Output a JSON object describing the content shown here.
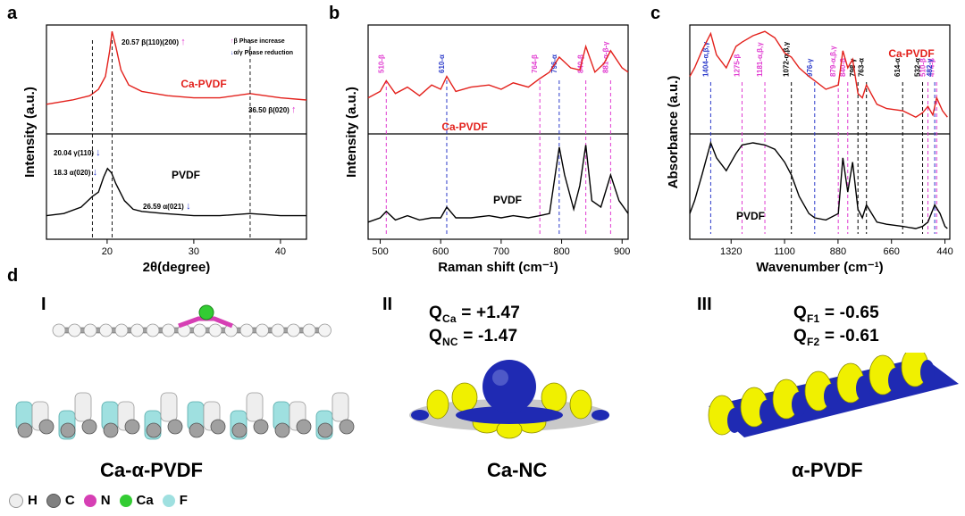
{
  "figure": {
    "labels": [
      "a",
      "b",
      "c",
      "d"
    ],
    "panel_d": {
      "roman": [
        "I",
        "II",
        "III"
      ],
      "q_ca": "Q",
      "q_ca_sub": "Ca",
      "q_ca_val": " = +1.47",
      "q_nc": "Q",
      "q_nc_sub": "NC",
      "q_nc_val": " = -1.47",
      "q_f1": "Q",
      "q_f1_sub": "F1",
      "q_f1_val": " = -0.65",
      "q_f2": "Q",
      "q_f2_sub": "F2",
      "q_f2_val": " = -0.61",
      "captions": [
        "Ca-α-PVDF",
        "Ca-NC",
        "α-PVDF"
      ],
      "legend": [
        {
          "symbol": "H",
          "color": "#eeeeee"
        },
        {
          "symbol": "C",
          "color": "#808080"
        },
        {
          "symbol": "N",
          "color": "#d63fb4"
        },
        {
          "symbol": "Ca",
          "color": "#33cc33"
        },
        {
          "symbol": "F",
          "color": "#9fe0e0"
        }
      ]
    }
  },
  "colors": {
    "ca_pvdf": "#e3211c",
    "pvdf": "#000000",
    "beta": "#e03ad0",
    "alpha": "#2a39c9",
    "mixed": "#000000"
  },
  "chart_data": [
    {
      "type": "line",
      "panel": "a",
      "xlabel": "2θ(degree)",
      "ylabel": "Intensity (a.u.)",
      "xlim": [
        13,
        43
      ],
      "xticks": [
        20,
        30,
        40
      ],
      "series": [
        {
          "name": "Ca-PVDF",
          "x": [
            13,
            16,
            18,
            19,
            19.8,
            20.3,
            20.57,
            21,
            21.6,
            22.5,
            24,
            27,
            30,
            33,
            36.5,
            40,
            43
          ],
          "y": [
            0.63,
            0.65,
            0.67,
            0.7,
            0.76,
            0.88,
            0.97,
            0.9,
            0.79,
            0.72,
            0.69,
            0.67,
            0.66,
            0.66,
            0.68,
            0.66,
            0.65
          ]
        },
        {
          "name": "PVDF",
          "x": [
            13,
            15,
            17,
            18.3,
            19,
            19.6,
            20.04,
            20.5,
            21,
            22,
            23,
            24,
            26.59,
            30,
            33,
            36.5,
            40,
            43
          ],
          "y": [
            0.11,
            0.12,
            0.15,
            0.2,
            0.22,
            0.29,
            0.33,
            0.31,
            0.26,
            0.18,
            0.14,
            0.13,
            0.12,
            0.11,
            0.11,
            0.12,
            0.11,
            0.11
          ]
        }
      ],
      "annotations": [
        {
          "text": "20.57 β(110)(200)",
          "arrow": "↑"
        },
        {
          "text": "36.50 β(020)",
          "arrow": "↑"
        },
        {
          "text": "20.04 γ(110)",
          "arrow": "↓"
        },
        {
          "text": "18.3 α(020)",
          "arrow": "↓"
        },
        {
          "text": "26.59 α(021)",
          "arrow": "↓"
        },
        {
          "text": "β Phase increase",
          "arrow": "↑"
        },
        {
          "text": "α/γ Phase reduction",
          "arrow": "↓"
        }
      ],
      "series_labels": [
        "Ca-PVDF",
        "PVDF"
      ]
    },
    {
      "type": "line",
      "panel": "b",
      "xlabel": "Raman shift (cm⁻¹)",
      "ylabel": "Intensity (a.u.)",
      "xlim": [
        480,
        910
      ],
      "xticks": [
        500,
        600,
        700,
        800,
        900
      ],
      "series": [
        {
          "name": "Ca-PVDF",
          "x": [
            480,
            500,
            510,
            525,
            545,
            565,
            585,
            600,
            610,
            625,
            650,
            680,
            700,
            720,
            745,
            764,
            780,
            796,
            815,
            830,
            840,
            855,
            870,
            881,
            900,
            910
          ],
          "y": [
            0.66,
            0.69,
            0.74,
            0.68,
            0.71,
            0.67,
            0.72,
            0.7,
            0.76,
            0.69,
            0.71,
            0.72,
            0.7,
            0.73,
            0.71,
            0.75,
            0.78,
            0.85,
            0.8,
            0.79,
            0.9,
            0.78,
            0.82,
            0.88,
            0.8,
            0.78
          ]
        },
        {
          "name": "PVDF",
          "x": [
            480,
            500,
            510,
            525,
            545,
            565,
            585,
            600,
            610,
            625,
            650,
            680,
            700,
            720,
            745,
            764,
            780,
            792,
            796,
            805,
            820,
            830,
            840,
            850,
            865,
            881,
            895,
            910
          ],
          "y": [
            0.08,
            0.1,
            0.13,
            0.09,
            0.11,
            0.09,
            0.1,
            0.1,
            0.15,
            0.1,
            0.1,
            0.11,
            0.1,
            0.11,
            0.1,
            0.11,
            0.12,
            0.35,
            0.43,
            0.3,
            0.14,
            0.25,
            0.44,
            0.18,
            0.15,
            0.3,
            0.18,
            0.12
          ]
        }
      ],
      "peaks": [
        {
          "label": "510-β",
          "x": 510,
          "color": "#e03ad0"
        },
        {
          "label": "610-α",
          "x": 610,
          "color": "#2a39c9"
        },
        {
          "label": "764-β",
          "x": 764,
          "color": "#e03ad0"
        },
        {
          "label": "796-α",
          "x": 796,
          "color": "#2a39c9"
        },
        {
          "label": "840-β",
          "x": 840,
          "color": "#e03ad0"
        },
        {
          "label": "881-α-β-γ",
          "x": 881,
          "color": "#e03ad0"
        }
      ],
      "series_labels": [
        "Ca-PVDF",
        "PVDF"
      ]
    },
    {
      "type": "line",
      "panel": "c",
      "xlabel": "Wavenumber (cm⁻¹)",
      "ylabel": "Absorbance (a.u.)",
      "xlim": [
        1490,
        420
      ],
      "xticks": [
        1320,
        1100,
        880,
        660,
        440
      ],
      "series": [
        {
          "name": "Ca-PVDF",
          "x": [
            1490,
            1470,
            1440,
            1404,
            1380,
            1340,
            1300,
            1275,
            1230,
            1181,
            1140,
            1100,
            1072,
            1040,
            1000,
            976,
            930,
            879,
            860,
            840,
            820,
            798,
            780,
            763,
            720,
            680,
            614,
            560,
            532,
            510,
            490,
            474,
            450,
            430
          ],
          "y": [
            0.76,
            0.8,
            0.88,
            0.96,
            0.86,
            0.8,
            0.9,
            0.92,
            0.95,
            0.97,
            0.94,
            0.87,
            0.85,
            0.8,
            0.76,
            0.74,
            0.7,
            0.72,
            0.88,
            0.8,
            0.84,
            0.68,
            0.66,
            0.72,
            0.63,
            0.61,
            0.6,
            0.57,
            0.59,
            0.62,
            0.58,
            0.66,
            0.6,
            0.57
          ]
        },
        {
          "name": "PVDF",
          "x": [
            1490,
            1470,
            1440,
            1404,
            1380,
            1340,
            1300,
            1275,
            1230,
            1181,
            1140,
            1100,
            1072,
            1040,
            1000,
            976,
            930,
            879,
            860,
            840,
            820,
            798,
            780,
            763,
            720,
            680,
            614,
            560,
            532,
            510,
            482,
            460,
            440,
            430
          ],
          "y": [
            0.12,
            0.18,
            0.3,
            0.45,
            0.38,
            0.32,
            0.4,
            0.44,
            0.45,
            0.44,
            0.42,
            0.36,
            0.3,
            0.2,
            0.12,
            0.1,
            0.09,
            0.12,
            0.38,
            0.22,
            0.36,
            0.14,
            0.1,
            0.16,
            0.08,
            0.07,
            0.06,
            0.05,
            0.06,
            0.08,
            0.16,
            0.12,
            0.06,
            0.05
          ]
        }
      ],
      "peaks": [
        {
          "label": "1404-α,β,γ",
          "x": 1404,
          "color": "#2a39c9"
        },
        {
          "label": "1275-β",
          "x": 1275,
          "color": "#e03ad0"
        },
        {
          "label": "1181-α,β,γ",
          "x": 1181,
          "color": "#e03ad0"
        },
        {
          "label": "1072-α,β,γ",
          "x": 1072,
          "color": "#000000"
        },
        {
          "label": "976-γ",
          "x": 976,
          "color": "#2a39c9"
        },
        {
          "label": "879-α,β,γ",
          "x": 879,
          "color": "#e03ad0"
        },
        {
          "label": "840-β",
          "x": 840,
          "color": "#e03ad0"
        },
        {
          "label": "798-γ",
          "x": 798,
          "color": "#000000"
        },
        {
          "label": "763-α",
          "x": 763,
          "color": "#000000"
        },
        {
          "label": "614-α",
          "x": 614,
          "color": "#000000"
        },
        {
          "label": "532-α",
          "x": 532,
          "color": "#000000"
        },
        {
          "label": "510-β",
          "x": 510,
          "color": "#e03ad0"
        },
        {
          "label": "474-β",
          "x": 474,
          "color": "#e03ad0"
        },
        {
          "label": "482-γ",
          "x": 482,
          "color": "#2a39c9"
        }
      ],
      "series_labels": [
        "Ca-PVDF",
        "PVDF"
      ]
    }
  ]
}
